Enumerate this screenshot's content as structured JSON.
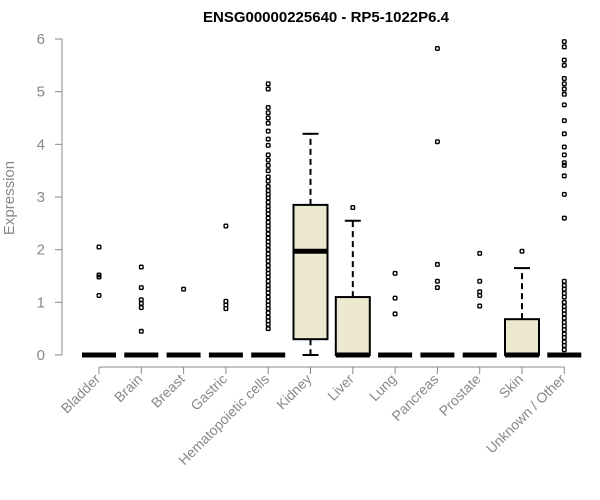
{
  "chart_data": {
    "type": "boxplot",
    "title": "ENSG00000225640 - RP5-1022P6.4",
    "ylabel": "Expression",
    "xlabel": "",
    "ylim": [
      0,
      6
    ],
    "yticks": [
      0,
      1,
      2,
      3,
      4,
      5,
      6
    ],
    "grid": false,
    "box_color": "#ede8d0",
    "categories": [
      "Bladder",
      "Brain",
      "Breast",
      "Gastric",
      "Hematopoietic cells",
      "Kidney",
      "Liver",
      "Lung",
      "Pancreas",
      "Prostate",
      "Skin",
      "Unknown / Other"
    ],
    "boxes": [
      {
        "category": "Bladder",
        "q1": 0,
        "median": 0,
        "q3": 0,
        "whisker_low": 0,
        "whisker_high": 0,
        "outliers": [
          2.05,
          1.52,
          1.48,
          1.13
        ]
      },
      {
        "category": "Brain",
        "q1": 0,
        "median": 0,
        "q3": 0,
        "whisker_low": 0,
        "whisker_high": 0,
        "outliers": [
          1.67,
          1.28,
          1.05,
          0.98,
          0.9,
          0.45
        ]
      },
      {
        "category": "Breast",
        "q1": 0,
        "median": 0,
        "q3": 0,
        "whisker_low": 0,
        "whisker_high": 0,
        "outliers": [
          1.25
        ]
      },
      {
        "category": "Gastric",
        "q1": 0,
        "median": 0,
        "q3": 0,
        "whisker_low": 0,
        "whisker_high": 0,
        "outliers": [
          2.45,
          1.02,
          0.95,
          0.88
        ]
      },
      {
        "category": "Hematopoietic cells",
        "q1": 0,
        "median": 0,
        "q3": 0,
        "whisker_low": 0,
        "whisker_high": 0,
        "outliers": [
          5.15,
          5.05,
          4.7,
          4.6,
          4.5,
          4.4,
          4.25,
          4.1,
          3.98,
          3.8,
          3.7,
          3.6,
          3.5,
          3.38,
          3.3,
          3.2,
          3.12,
          3.05,
          2.98,
          2.9,
          2.82,
          2.75,
          2.68,
          2.6,
          2.52,
          2.45,
          2.38,
          2.3,
          2.22,
          2.15,
          2.08,
          2.0,
          1.92,
          1.85,
          1.78,
          1.7,
          1.62,
          1.55,
          1.48,
          1.4,
          1.32,
          1.25,
          1.18,
          1.1,
          1.02,
          0.95,
          0.88,
          0.8,
          0.72,
          0.65,
          0.58,
          0.5
        ]
      },
      {
        "category": "Kidney",
        "q1": 0.3,
        "median": 1.97,
        "q3": 2.85,
        "whisker_low": 0,
        "whisker_high": 4.2,
        "outliers": []
      },
      {
        "category": "Liver",
        "q1": 0,
        "median": 0,
        "q3": 1.1,
        "whisker_low": 0,
        "whisker_high": 2.55,
        "outliers": [
          2.8
        ]
      },
      {
        "category": "Lung",
        "q1": 0,
        "median": 0,
        "q3": 0,
        "whisker_low": 0,
        "whisker_high": 0,
        "outliers": [
          1.55,
          1.08,
          0.78
        ]
      },
      {
        "category": "Pancreas",
        "q1": 0,
        "median": 0,
        "q3": 0,
        "whisker_low": 0,
        "whisker_high": 0,
        "outliers": [
          5.82,
          4.05,
          1.72,
          1.4,
          1.28
        ]
      },
      {
        "category": "Prostate",
        "q1": 0,
        "median": 0,
        "q3": 0,
        "whisker_low": 0,
        "whisker_high": 0,
        "outliers": [
          1.93,
          1.4,
          1.2,
          1.13,
          0.93
        ]
      },
      {
        "category": "Skin",
        "q1": 0,
        "median": 0,
        "q3": 0.68,
        "whisker_low": 0,
        "whisker_high": 1.65,
        "outliers": [
          1.97
        ]
      },
      {
        "category": "Unknown / Other",
        "q1": 0,
        "median": 0,
        "q3": 0,
        "whisker_low": 0,
        "whisker_high": 0,
        "outliers": [
          5.95,
          5.85,
          5.6,
          5.5,
          5.25,
          5.15,
          5.05,
          4.95,
          4.75,
          4.45,
          4.2,
          3.95,
          3.8,
          3.65,
          3.6,
          3.4,
          3.05,
          2.6,
          1.4,
          1.32,
          1.25,
          1.17,
          1.1,
          1.0,
          0.92,
          0.85,
          0.78,
          0.7,
          0.62,
          0.55,
          0.48,
          0.4,
          0.33,
          0.25,
          0.18,
          0.1
        ]
      }
    ]
  }
}
